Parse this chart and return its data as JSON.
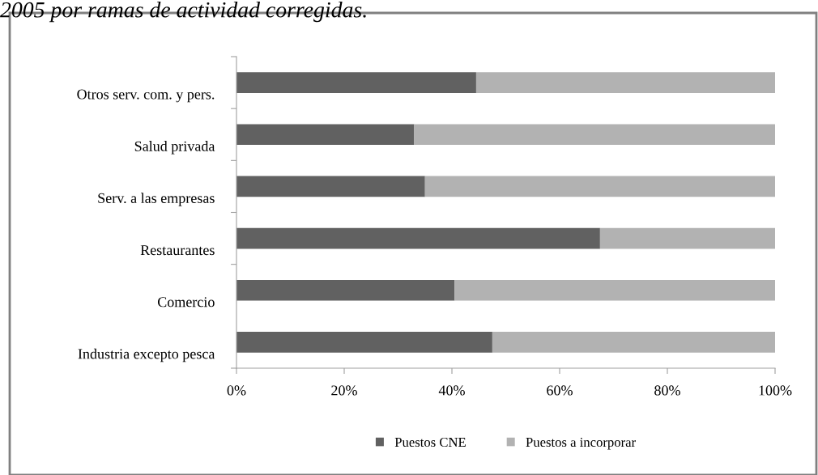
{
  "chart_data": {
    "type": "bar",
    "orientation": "horizontal",
    "stacked": true,
    "title": "2005 por ramas de actividad corregidas.",
    "categories": [
      "Otros serv. com. y pers.",
      "Salud privada",
      "Serv. a las empresas",
      "Restaurantes",
      "Comercio",
      "Industria excepto pesca"
    ],
    "series": [
      {
        "name": "Puestos CNE",
        "color": "#616161",
        "values": [
          44.5,
          33,
          35,
          67.5,
          40.5,
          47.5
        ]
      },
      {
        "name": "Puestos a incorporar",
        "color": "#b2b2b2",
        "values": [
          55.5,
          67,
          65,
          32.5,
          59.5,
          52.5
        ]
      }
    ],
    "xlim": [
      0,
      100
    ],
    "xticks": [
      {
        "value": 0,
        "label": "0%"
      },
      {
        "value": 20,
        "label": "20%"
      },
      {
        "value": 40,
        "label": "40%"
      },
      {
        "value": 60,
        "label": "60%"
      },
      {
        "value": 80,
        "label": "80%"
      },
      {
        "value": 100,
        "label": "100%"
      }
    ],
    "grid": false,
    "legend": "bottom"
  }
}
